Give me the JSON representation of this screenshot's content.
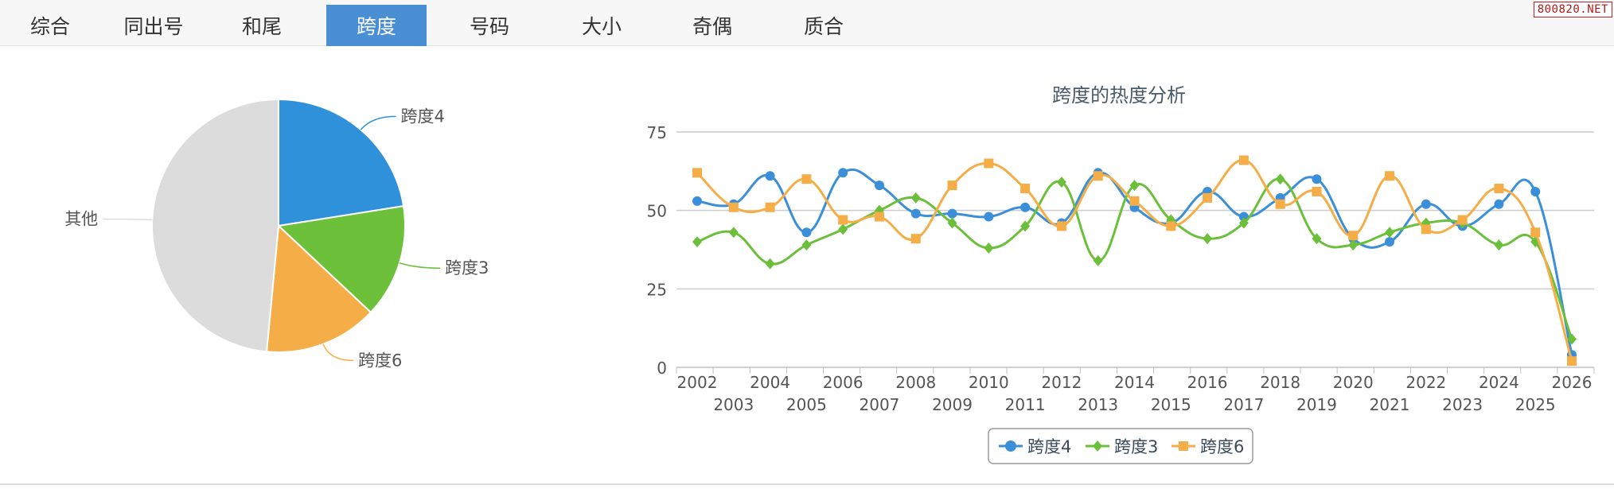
{
  "tabs": [
    {
      "label": "综合",
      "active": false
    },
    {
      "label": "同出号",
      "active": false
    },
    {
      "label": "和尾",
      "active": false
    },
    {
      "label": "跨度",
      "active": true
    },
    {
      "label": "号码",
      "active": false
    },
    {
      "label": "大小",
      "active": false
    },
    {
      "label": "奇偶",
      "active": false
    },
    {
      "label": "质合",
      "active": false
    }
  ],
  "watermark": "800820.NET",
  "colors": {
    "series1": "#3a8fd8",
    "series2": "#6cbf3a",
    "series3": "#f5ad47",
    "other": "#dcdcdc",
    "tab_active": "#4a8ed4"
  },
  "chart_data": [
    {
      "type": "pie",
      "slices": [
        {
          "label": "跨度4",
          "value": 22.5,
          "color": "#2e91d9"
        },
        {
          "label": "跨度3",
          "value": 14.5,
          "color": "#6cc03a"
        },
        {
          "label": "跨度6",
          "value": 14.5,
          "color": "#f5ad47"
        },
        {
          "label": "其他",
          "value": 48.5,
          "color": "#dcdcdc"
        }
      ]
    },
    {
      "type": "line",
      "title": "跨度的热度分析",
      "x": [
        "2002",
        "2003",
        "2004",
        "2005",
        "2006",
        "2007",
        "2008",
        "2009",
        "2010",
        "2011",
        "2012",
        "2013",
        "2014",
        "2015",
        "2016",
        "2017",
        "2018",
        "2019",
        "2020",
        "2021",
        "2022",
        "2023",
        "2024",
        "2025",
        "2026"
      ],
      "ylim": [
        0,
        75
      ],
      "yticks": [
        0,
        25,
        50,
        75
      ],
      "grid": true,
      "legend": "bottom",
      "series": [
        {
          "name": "跨度4",
          "marker": "circle",
          "color": "#3a8fd8",
          "values": [
            53,
            52,
            61,
            43,
            62,
            58,
            49,
            49,
            48,
            51,
            46,
            62,
            51,
            46,
            56,
            48,
            54,
            60,
            41,
            40,
            52,
            45,
            52,
            56,
            4
          ]
        },
        {
          "name": "跨度3",
          "marker": "diamond",
          "color": "#6cbf3a",
          "values": [
            40,
            43,
            33,
            39,
            44,
            50,
            54,
            46,
            38,
            45,
            59,
            34,
            58,
            47,
            41,
            46,
            60,
            41,
            39,
            43,
            46,
            46,
            39,
            40,
            9
          ]
        },
        {
          "name": "跨度6",
          "marker": "square",
          "color": "#f5ad47",
          "values": [
            62,
            51,
            51,
            60,
            47,
            48,
            41,
            58,
            65,
            57,
            45,
            61,
            53,
            45,
            54,
            66,
            52,
            56,
            42,
            61,
            44,
            47,
            57,
            43,
            2
          ]
        }
      ]
    }
  ]
}
